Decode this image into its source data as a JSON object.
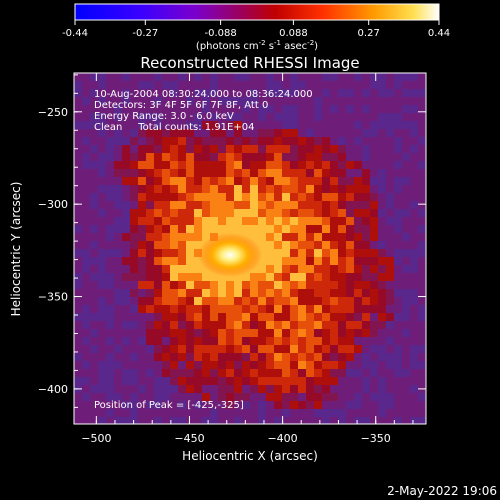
{
  "chart_data": {
    "type": "heatmap",
    "title": "Reconstructed RHESSI Image",
    "xlabel": "Heliocentric X (arcsec)",
    "ylabel": "Heliocentric Y (arcsec)",
    "xlim": [
      -512,
      -323
    ],
    "ylim": [
      -419,
      -229
    ],
    "x_ticks": [
      -500,
      -450,
      -400,
      -350
    ],
    "y_ticks": [
      -250,
      -300,
      -350,
      -400
    ],
    "colorbar": {
      "range": [
        -0.44,
        0.44
      ],
      "ticks": [
        "-0.44",
        "-0.27",
        "-0.088",
        "0.088",
        "0.27",
        "0.44"
      ],
      "unit_base": "(photons cm",
      "unit_exp1": "-2",
      "unit_mid": " s",
      "unit_exp2": "-1",
      "unit_end": " asec",
      "unit_exp3": "-2",
      "unit_close": ")",
      "colormap": "hot (blue-purple-red-yellow-white)"
    },
    "annotations": [
      "10-Aug-2004 08:30:24.000 to 08:36:24.000",
      "Detectors: 3F 4F 5F 6F 7F 8F, Att 0",
      "Energy Range: 3.0 - 6.0 keV",
      "Clean     Total counts: 1.91E+04"
    ],
    "peak_label": "Position of Peak = [-425,-325]",
    "peak": {
      "x": -425,
      "y": -325,
      "value": 0.44
    },
    "source": {
      "center_x": -425,
      "center_y": -325,
      "core_value": 0.44,
      "extended_region_value": 0.06,
      "background_value": -0.13
    },
    "grid": false
  },
  "footer": {
    "timestamp": "2-May-2022 19:06"
  }
}
